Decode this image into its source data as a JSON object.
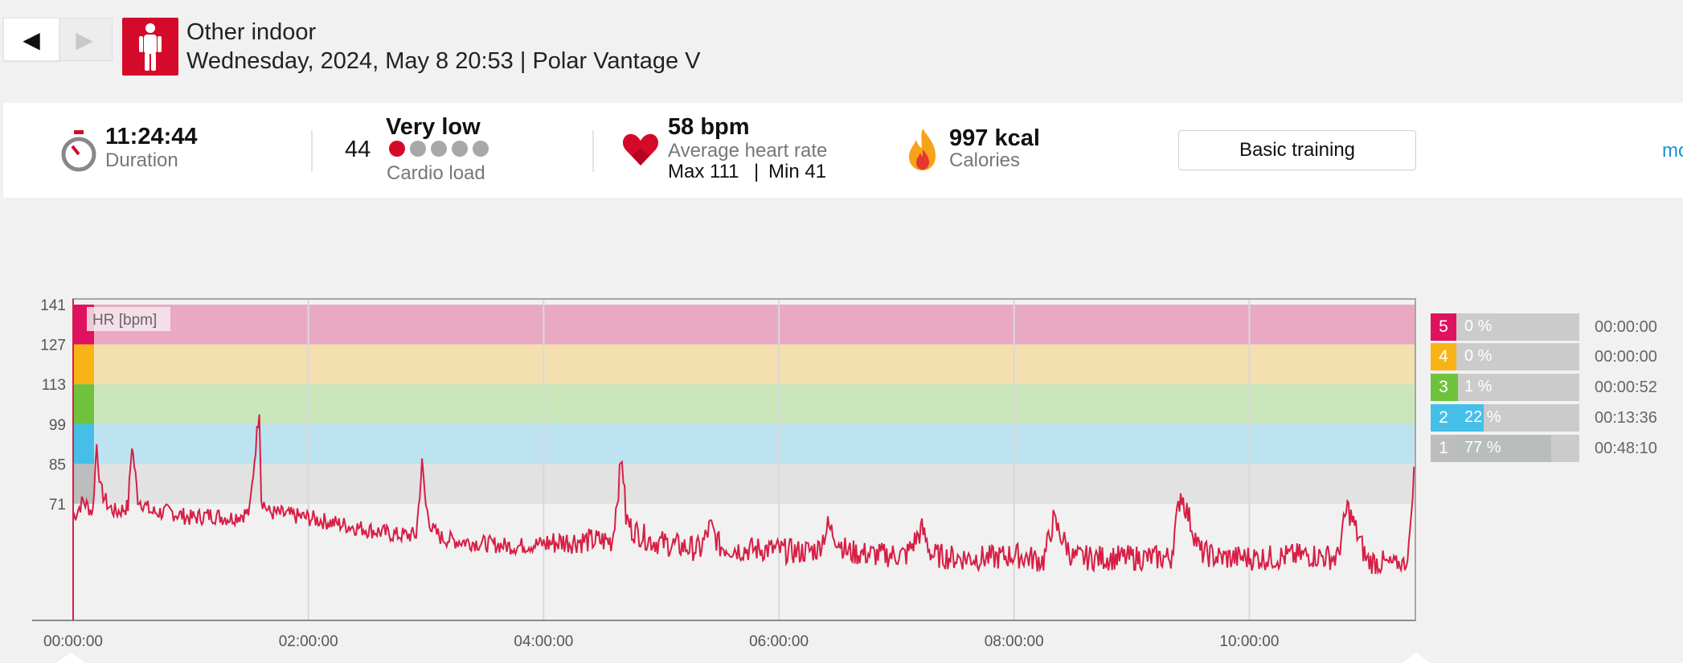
{
  "nav": {
    "prev": "◀",
    "next": "▶"
  },
  "header": {
    "sport": "Other indoor",
    "subtitle": "Wednesday, 2024, May 8 20:53 | Polar Vantage V"
  },
  "summary": {
    "duration_value": "11:24:44",
    "duration_label": "Duration",
    "cardio_value": "44",
    "cardio_level": "Very low",
    "cardio_label": "Cardio load",
    "cardio_dots_filled": 1,
    "cardio_dots_total": 5,
    "hr_value": "58 bpm",
    "hr_label": "Average heart rate",
    "hr_max": "Max 111",
    "hr_sep": "|",
    "hr_min": "Min 41",
    "calories_value": "997 kcal",
    "calories_label": "Calories",
    "training_button": "Basic training",
    "more_link": "mo"
  },
  "colors": {
    "brand_red": "#d50a2b",
    "hr_line": "#d61f45",
    "zone5": "#e0115f",
    "zone4": "#f8b417",
    "zone3": "#6fc23c",
    "zone2": "#46bfe8",
    "zone1": "#bdbdbd"
  },
  "chart_data": {
    "type": "line",
    "title": "",
    "legend_label": "HR [bpm]",
    "xlabel": "",
    "ylabel": "",
    "x_ticks": [
      "00:00:00",
      "02:00:00",
      "04:00:00",
      "06:00:00",
      "08:00:00",
      "10:00:00"
    ],
    "y_ticks": [
      141,
      127,
      113,
      99,
      85,
      71
    ],
    "xlim_minutes": [
      0,
      684.7
    ],
    "ylim": [
      30,
      143
    ],
    "zones": [
      {
        "zone": 5,
        "from": 127,
        "to": 141,
        "color": "#eaa9c3"
      },
      {
        "zone": 4,
        "from": 113,
        "to": 127,
        "color": "#f4dfaf"
      },
      {
        "zone": 3,
        "from": 99,
        "to": 113,
        "color": "#cae6bb"
      },
      {
        "zone": 2,
        "from": 85,
        "to": 99,
        "color": "#bde3f0"
      },
      {
        "zone": 1,
        "from": 71,
        "to": 85,
        "color": "#e2e2e2"
      }
    ],
    "series": [
      {
        "name": "",
        "x_minutes": [
          0,
          5,
          10,
          12,
          14,
          18,
          22,
          28,
          30,
          33,
          40,
          50,
          60,
          70,
          80,
          90,
          95,
          96,
          98,
          100,
          110,
          120,
          135,
          150,
          165,
          175,
          178,
          180,
          183,
          188,
          195,
          210,
          225,
          240,
          255,
          275,
          280,
          282,
          285,
          295,
          310,
          320,
          325,
          330,
          340,
          355,
          370,
          380,
          385,
          395,
          410,
          425,
          433,
          438,
          450,
          470,
          480,
          495,
          500,
          510,
          525,
          545,
          560,
          565,
          575,
          585,
          595,
          610,
          630,
          645,
          650,
          660,
          670,
          678,
          680,
          682,
          684
        ],
        "values": [
          66,
          72,
          68,
          92,
          76,
          70,
          68,
          70,
          92,
          73,
          68,
          68,
          66,
          67,
          66,
          68,
          105,
          73,
          70,
          68,
          67,
          66,
          64,
          62,
          60,
          60,
          85,
          70,
          62,
          59,
          58,
          57,
          56,
          57,
          58,
          58,
          88,
          66,
          62,
          58,
          56,
          55,
          63,
          56,
          55,
          55,
          54,
          55,
          63,
          54,
          53,
          53,
          62,
          53,
          52,
          52,
          53,
          51,
          65,
          52,
          52,
          52,
          52,
          75,
          54,
          52,
          52,
          52,
          53,
          52,
          70,
          51,
          50,
          50,
          50,
          60,
          84
        ]
      }
    ],
    "zone_summary": [
      {
        "zone": "5",
        "percent": "0 %",
        "fraction": 0.0,
        "time": "00:00:00"
      },
      {
        "zone": "4",
        "percent": "0 %",
        "fraction": 0.0,
        "time": "00:00:00"
      },
      {
        "zone": "3",
        "percent": "1 %",
        "fraction": 0.01,
        "time": "00:00:52"
      },
      {
        "zone": "2",
        "percent": "22 %",
        "fraction": 0.22,
        "time": "00:13:36"
      },
      {
        "zone": "1",
        "percent": "77 %",
        "fraction": 0.77,
        "time": "00:48:10"
      }
    ]
  }
}
